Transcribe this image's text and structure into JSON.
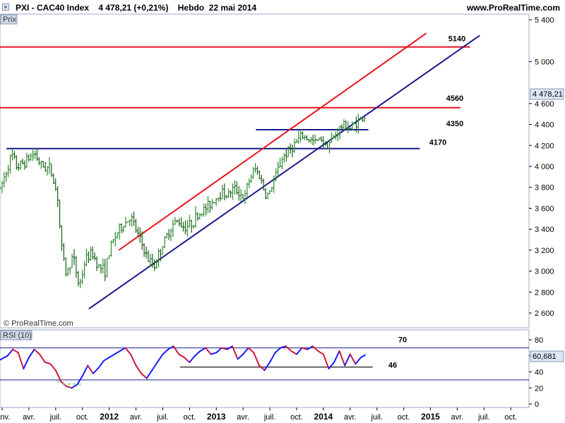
{
  "header": {
    "title": "PXI - CAC40 Index    4 478,21 (+0,21%)    Hebdo  22 mai 2014",
    "url": "www.ProRealTime.com"
  },
  "price_panel": {
    "label": "Prix",
    "current_badge": "4 478,21",
    "copyright": "© ProRealTime.com"
  },
  "rsi_panel": {
    "label": "RSI (10)",
    "current_badge": "60,681"
  },
  "colors": {
    "up_bar": "#2f8a2f",
    "down_bar": "#1a5c1a",
    "red_line": "#e8141e",
    "blue_line": "#1a1a8c",
    "rsi_up": "#1a1aff",
    "rsi_down": "#cc1a3c",
    "badge": "#dde6f4",
    "grid_frame": "#9aa8c8"
  },
  "chart_data": [
    {
      "type": "candlestick",
      "title": "PXI - CAC40 Index",
      "timeframe": "Hebdo",
      "ylim": [
        2500,
        5450
      ],
      "y_ticks": [
        "2 600",
        "2 800",
        "3 000",
        "3 200",
        "3 400",
        "3 600",
        "3 800",
        "4 000",
        "4 200",
        "4 400",
        "4 600",
        "5 000",
        "5 400"
      ],
      "x_ticks": [
        {
          "t": 2011.0,
          "label": "janv.",
          "bold": false
        },
        {
          "t": 2011.25,
          "label": "avr.",
          "bold": false
        },
        {
          "t": 2011.5,
          "label": "juil.",
          "bold": false
        },
        {
          "t": 2011.75,
          "label": "oct.",
          "bold": false
        },
        {
          "t": 2012.0,
          "label": "2012",
          "bold": true
        },
        {
          "t": 2012.25,
          "label": "avr.",
          "bold": false
        },
        {
          "t": 2012.5,
          "label": "juil.",
          "bold": false
        },
        {
          "t": 2012.75,
          "label": "oct.",
          "bold": false
        },
        {
          "t": 2013.0,
          "label": "2013",
          "bold": true
        },
        {
          "t": 2013.25,
          "label": "avr.",
          "bold": false
        },
        {
          "t": 2013.5,
          "label": "juil.",
          "bold": false
        },
        {
          "t": 2013.75,
          "label": "oct.",
          "bold": false
        },
        {
          "t": 2014.0,
          "label": "2014",
          "bold": true
        },
        {
          "t": 2014.25,
          "label": "avr.",
          "bold": false
        },
        {
          "t": 2014.5,
          "label": "juil.",
          "bold": false
        },
        {
          "t": 2014.75,
          "label": "oct.",
          "bold": false
        },
        {
          "t": 2015.0,
          "label": "2015",
          "bold": true
        },
        {
          "t": 2015.25,
          "label": "avr.",
          "bold": false
        },
        {
          "t": 2015.5,
          "label": "juil.",
          "bold": false
        },
        {
          "t": 2015.75,
          "label": "oct.",
          "bold": false
        }
      ],
      "price_path": [
        [
          2010.98,
          3780
        ],
        [
          2011.04,
          3960
        ],
        [
          2011.09,
          4110
        ],
        [
          2011.14,
          3990
        ],
        [
          2011.22,
          4050
        ],
        [
          2011.3,
          4130
        ],
        [
          2011.37,
          4000
        ],
        [
          2011.45,
          3980
        ],
        [
          2011.52,
          3700
        ],
        [
          2011.55,
          3250
        ],
        [
          2011.6,
          2960
        ],
        [
          2011.66,
          3150
        ],
        [
          2011.72,
          2850
        ],
        [
          2011.78,
          3120
        ],
        [
          2011.84,
          3170
        ],
        [
          2011.9,
          3050
        ],
        [
          2011.96,
          3000
        ],
        [
          2012.02,
          3250
        ],
        [
          2012.08,
          3380
        ],
        [
          2012.14,
          3450
        ],
        [
          2012.2,
          3520
        ],
        [
          2012.25,
          3390
        ],
        [
          2012.3,
          3270
        ],
        [
          2012.36,
          3110
        ],
        [
          2012.42,
          3050
        ],
        [
          2012.47,
          3180
        ],
        [
          2012.52,
          3290
        ],
        [
          2012.58,
          3430
        ],
        [
          2012.64,
          3480
        ],
        [
          2012.7,
          3420
        ],
        [
          2012.76,
          3450
        ],
        [
          2012.82,
          3520
        ],
        [
          2012.88,
          3580
        ],
        [
          2012.94,
          3640
        ],
        [
          2013.0,
          3700
        ],
        [
          2013.06,
          3760
        ],
        [
          2013.1,
          3720
        ],
        [
          2013.16,
          3790
        ],
        [
          2013.22,
          3750
        ],
        [
          2013.26,
          3680
        ],
        [
          2013.3,
          3850
        ],
        [
          2013.36,
          3980
        ],
        [
          2013.41,
          3900
        ],
        [
          2013.46,
          3720
        ],
        [
          2013.5,
          3750
        ],
        [
          2013.56,
          3930
        ],
        [
          2013.62,
          4090
        ],
        [
          2013.68,
          4150
        ],
        [
          2013.74,
          4220
        ],
        [
          2013.8,
          4290
        ],
        [
          2013.86,
          4260
        ],
        [
          2013.92,
          4230
        ],
        [
          2013.98,
          4270
        ],
        [
          2014.02,
          4200
        ],
        [
          2014.08,
          4250
        ],
        [
          2014.14,
          4350
        ],
        [
          2014.2,
          4400
        ],
        [
          2014.25,
          4360
        ],
        [
          2014.3,
          4420
        ],
        [
          2014.35,
          4450
        ],
        [
          2014.39,
          4478
        ]
      ],
      "annotations": [
        {
          "label": "5140",
          "value": 5140
        },
        {
          "label": "4560",
          "value": 4560
        },
        {
          "label": "4350",
          "value": 4350
        },
        {
          "label": "4170",
          "value": 4170
        }
      ],
      "horizontal_lines": [
        {
          "color": "red",
          "value": 5140,
          "t_from": 2010.98,
          "t_to": 2015.37
        },
        {
          "color": "red",
          "value": 4560,
          "t_from": 2010.98,
          "t_to": 2015.28
        },
        {
          "color": "blue",
          "value": 4350,
          "t_from": 2013.37,
          "t_to": 2014.42
        },
        {
          "color": "blue",
          "value": 4170,
          "t_from": 2011.04,
          "t_to": 2014.9
        }
      ],
      "trend_lines": [
        {
          "color": "red",
          "from": [
            2012.09,
            3200
          ],
          "to": [
            2014.96,
            5270
          ]
        },
        {
          "color": "blue",
          "from": [
            2011.81,
            2640
          ],
          "to": [
            2015.46,
            5250
          ]
        }
      ]
    },
    {
      "type": "line",
      "title": "RSI (10)",
      "ylim": [
        -5,
        90
      ],
      "y_ticks": [
        "0",
        "20",
        "40",
        "60",
        "80"
      ],
      "levels": [
        {
          "label": "70",
          "value": 70
        },
        {
          "label": "46",
          "value": 46
        }
      ],
      "reference_lines": [
        30
      ],
      "support_segment": {
        "value": 46,
        "t_from": 2012.66,
        "t_to": 2014.46
      },
      "series": [
        {
          "x": [
            2010.98,
            2011.05,
            2011.1,
            2011.15,
            2011.2,
            2011.25,
            2011.3,
            2011.35,
            2011.4,
            2011.45,
            2011.5,
            2011.55,
            2011.6,
            2011.65,
            2011.7,
            2011.75,
            2011.8,
            2011.85,
            2011.9,
            2011.95,
            2012.0,
            2012.05,
            2012.1,
            2012.15,
            2012.2,
            2012.25,
            2012.3,
            2012.35,
            2012.4,
            2012.45,
            2012.5,
            2012.55,
            2012.6,
            2012.65,
            2012.7,
            2012.75,
            2012.8,
            2012.85,
            2012.9,
            2012.95,
            2013.0,
            2013.05,
            2013.1,
            2013.15,
            2013.2,
            2013.25,
            2013.3,
            2013.35,
            2013.4,
            2013.45,
            2013.5,
            2013.55,
            2013.6,
            2013.65,
            2013.7,
            2013.75,
            2013.8,
            2013.85,
            2013.9,
            2013.95,
            2014.0,
            2014.05,
            2014.1,
            2014.15,
            2014.2,
            2014.25,
            2014.3,
            2014.35,
            2014.39
          ],
          "values": [
            55,
            60,
            68,
            64,
            44,
            58,
            68,
            62,
            52,
            50,
            42,
            28,
            22,
            20,
            24,
            35,
            48,
            38,
            45,
            54,
            58,
            62,
            66,
            70,
            62,
            48,
            38,
            32,
            42,
            52,
            62,
            68,
            72,
            62,
            58,
            52,
            60,
            66,
            70,
            62,
            64,
            70,
            68,
            72,
            56,
            62,
            70,
            64,
            48,
            42,
            52,
            64,
            70,
            72,
            66,
            62,
            70,
            68,
            72,
            66,
            62,
            44,
            52,
            66,
            48,
            62,
            50,
            58,
            61
          ]
        }
      ]
    }
  ]
}
